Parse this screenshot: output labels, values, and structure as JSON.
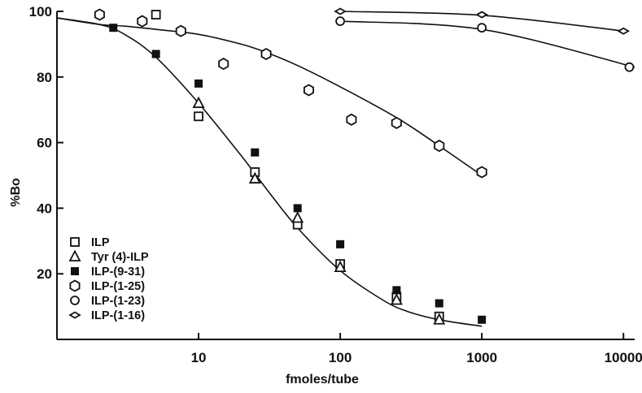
{
  "chart_data": {
    "type": "scatter",
    "title": "",
    "xlabel": "fmoles/tube",
    "ylabel": "%Bo",
    "xscale": "log",
    "xlim": [
      1,
      12000
    ],
    "ylim": [
      0,
      100
    ],
    "x_ticks": [
      10,
      100,
      1000,
      10000
    ],
    "x_tick_labels": [
      "10",
      "100",
      "1000",
      "10000"
    ],
    "y_ticks": [
      20,
      40,
      60,
      80,
      100
    ],
    "y_tick_labels": [
      "20",
      "40",
      "60",
      "80",
      "100"
    ],
    "grid": false,
    "legend_position": "bottom-left",
    "series": [
      {
        "name": "ILP",
        "marker": "open-square",
        "x": [
          5,
          10,
          25,
          50,
          100,
          250,
          500
        ],
        "y": [
          99,
          68,
          51,
          35,
          23,
          13,
          7
        ]
      },
      {
        "name": "Tyr (4)-ILP",
        "marker": "open-triangle",
        "x": [
          10,
          25,
          50,
          100,
          250,
          500
        ],
        "y": [
          72,
          49,
          37,
          22,
          12,
          6
        ]
      },
      {
        "name": "ILP-(9-31)",
        "marker": "filled-square",
        "x": [
          2.5,
          5,
          10,
          25,
          50,
          100,
          250,
          500,
          1000
        ],
        "y": [
          95,
          87,
          78,
          57,
          40,
          29,
          15,
          11,
          6
        ]
      },
      {
        "name": "ILP-(1-25)",
        "marker": "open-hexagon",
        "x": [
          2,
          4,
          7.5,
          15,
          30,
          60,
          120,
          250,
          500,
          1000
        ],
        "y": [
          99,
          97,
          94,
          84,
          87,
          76,
          67,
          66,
          59,
          51
        ]
      },
      {
        "name": "ILP-(1-23)",
        "marker": "open-circle",
        "x": [
          100,
          1000,
          11000
        ],
        "y": [
          97,
          95,
          83
        ]
      },
      {
        "name": "ILP-(1-16)",
        "marker": "open-diamond",
        "x": [
          100,
          1000,
          10000
        ],
        "y": [
          100,
          99,
          94
        ]
      }
    ],
    "curves": [
      {
        "x": [
          1,
          2,
          3,
          5,
          10,
          20,
          30,
          50,
          100,
          200,
          300,
          500,
          1000
        ],
        "y": [
          98,
          96,
          93,
          86,
          72,
          56,
          46,
          34,
          21,
          12,
          8.5,
          6,
          4
        ]
      },
      {
        "x": [
          1,
          2,
          3,
          5,
          10,
          20,
          30,
          50,
          100,
          200,
          300,
          500,
          1000
        ],
        "y": [
          98,
          96,
          95.5,
          94.5,
          93,
          90,
          87.5,
          83.5,
          77,
          70,
          65.5,
          59,
          50
        ]
      },
      {
        "x": [
          100,
          1000,
          12000
        ],
        "y": [
          97,
          94.5,
          83
        ]
      },
      {
        "x": [
          100,
          1000,
          10000
        ],
        "y": [
          100,
          98.8,
          94
        ]
      }
    ]
  }
}
